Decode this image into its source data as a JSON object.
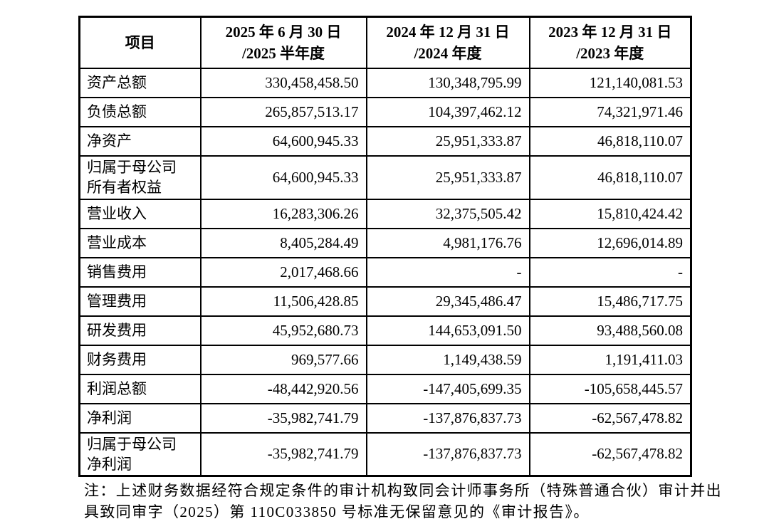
{
  "page": {
    "background_color": "#ffffff",
    "text_color": "#000000",
    "border_color": "#000000"
  },
  "table": {
    "header": {
      "item": "项目",
      "periods": [
        "2025 年 6 月 30 日\n/2025 半年度",
        "2024 年 12 月 31 日\n/2024 年度",
        "2023 年 12 月 31 日\n/2023 年度"
      ]
    },
    "rows": [
      {
        "label": "资产总额",
        "tall": false,
        "values": [
          "330,458,458.50",
          "130,348,795.99",
          "121,140,081.53"
        ]
      },
      {
        "label": "负债总额",
        "tall": false,
        "values": [
          "265,857,513.17",
          "104,397,462.12",
          "74,321,971.46"
        ]
      },
      {
        "label": "净资产",
        "tall": false,
        "values": [
          "64,600,945.33",
          "25,951,333.87",
          "46,818,110.07"
        ]
      },
      {
        "label": "归属于母公司\n所有者权益",
        "tall": true,
        "values": [
          "64,600,945.33",
          "25,951,333.87",
          "46,818,110.07"
        ]
      },
      {
        "label": "营业收入",
        "tall": false,
        "values": [
          "16,283,306.26",
          "32,375,505.42",
          "15,810,424.42"
        ]
      },
      {
        "label": "营业成本",
        "tall": false,
        "values": [
          "8,405,284.49",
          "4,981,176.76",
          "12,696,014.89"
        ]
      },
      {
        "label": "销售费用",
        "tall": false,
        "values": [
          "2,017,468.66",
          "-",
          "-"
        ]
      },
      {
        "label": "管理费用",
        "tall": false,
        "values": [
          "11,506,428.85",
          "29,345,486.47",
          "15,486,717.75"
        ]
      },
      {
        "label": "研发费用",
        "tall": false,
        "values": [
          "45,952,680.73",
          "144,653,091.50",
          "93,488,560.08"
        ]
      },
      {
        "label": "财务费用",
        "tall": false,
        "values": [
          "969,577.66",
          "1,149,438.59",
          "1,191,411.03"
        ]
      },
      {
        "label": "利润总额",
        "tall": false,
        "values": [
          "-48,442,920.56",
          "-147,405,699.35",
          "-105,658,445.57"
        ]
      },
      {
        "label": "净利润",
        "tall": false,
        "values": [
          "-35,982,741.79",
          "-137,876,837.73",
          "-62,567,478.82"
        ]
      },
      {
        "label": "归属于母公司\n净利润",
        "tall": true,
        "values": [
          "-35,982,741.79",
          "-137,876,837.73",
          "-62,567,478.82"
        ]
      }
    ]
  },
  "note": "注：上述财务数据经符合规定条件的审计机构致同会计师事务所（特殊普通合伙）审计并出\n具致同审字（2025）第 110C033850 号标准无保留意见的《审计报告》。"
}
